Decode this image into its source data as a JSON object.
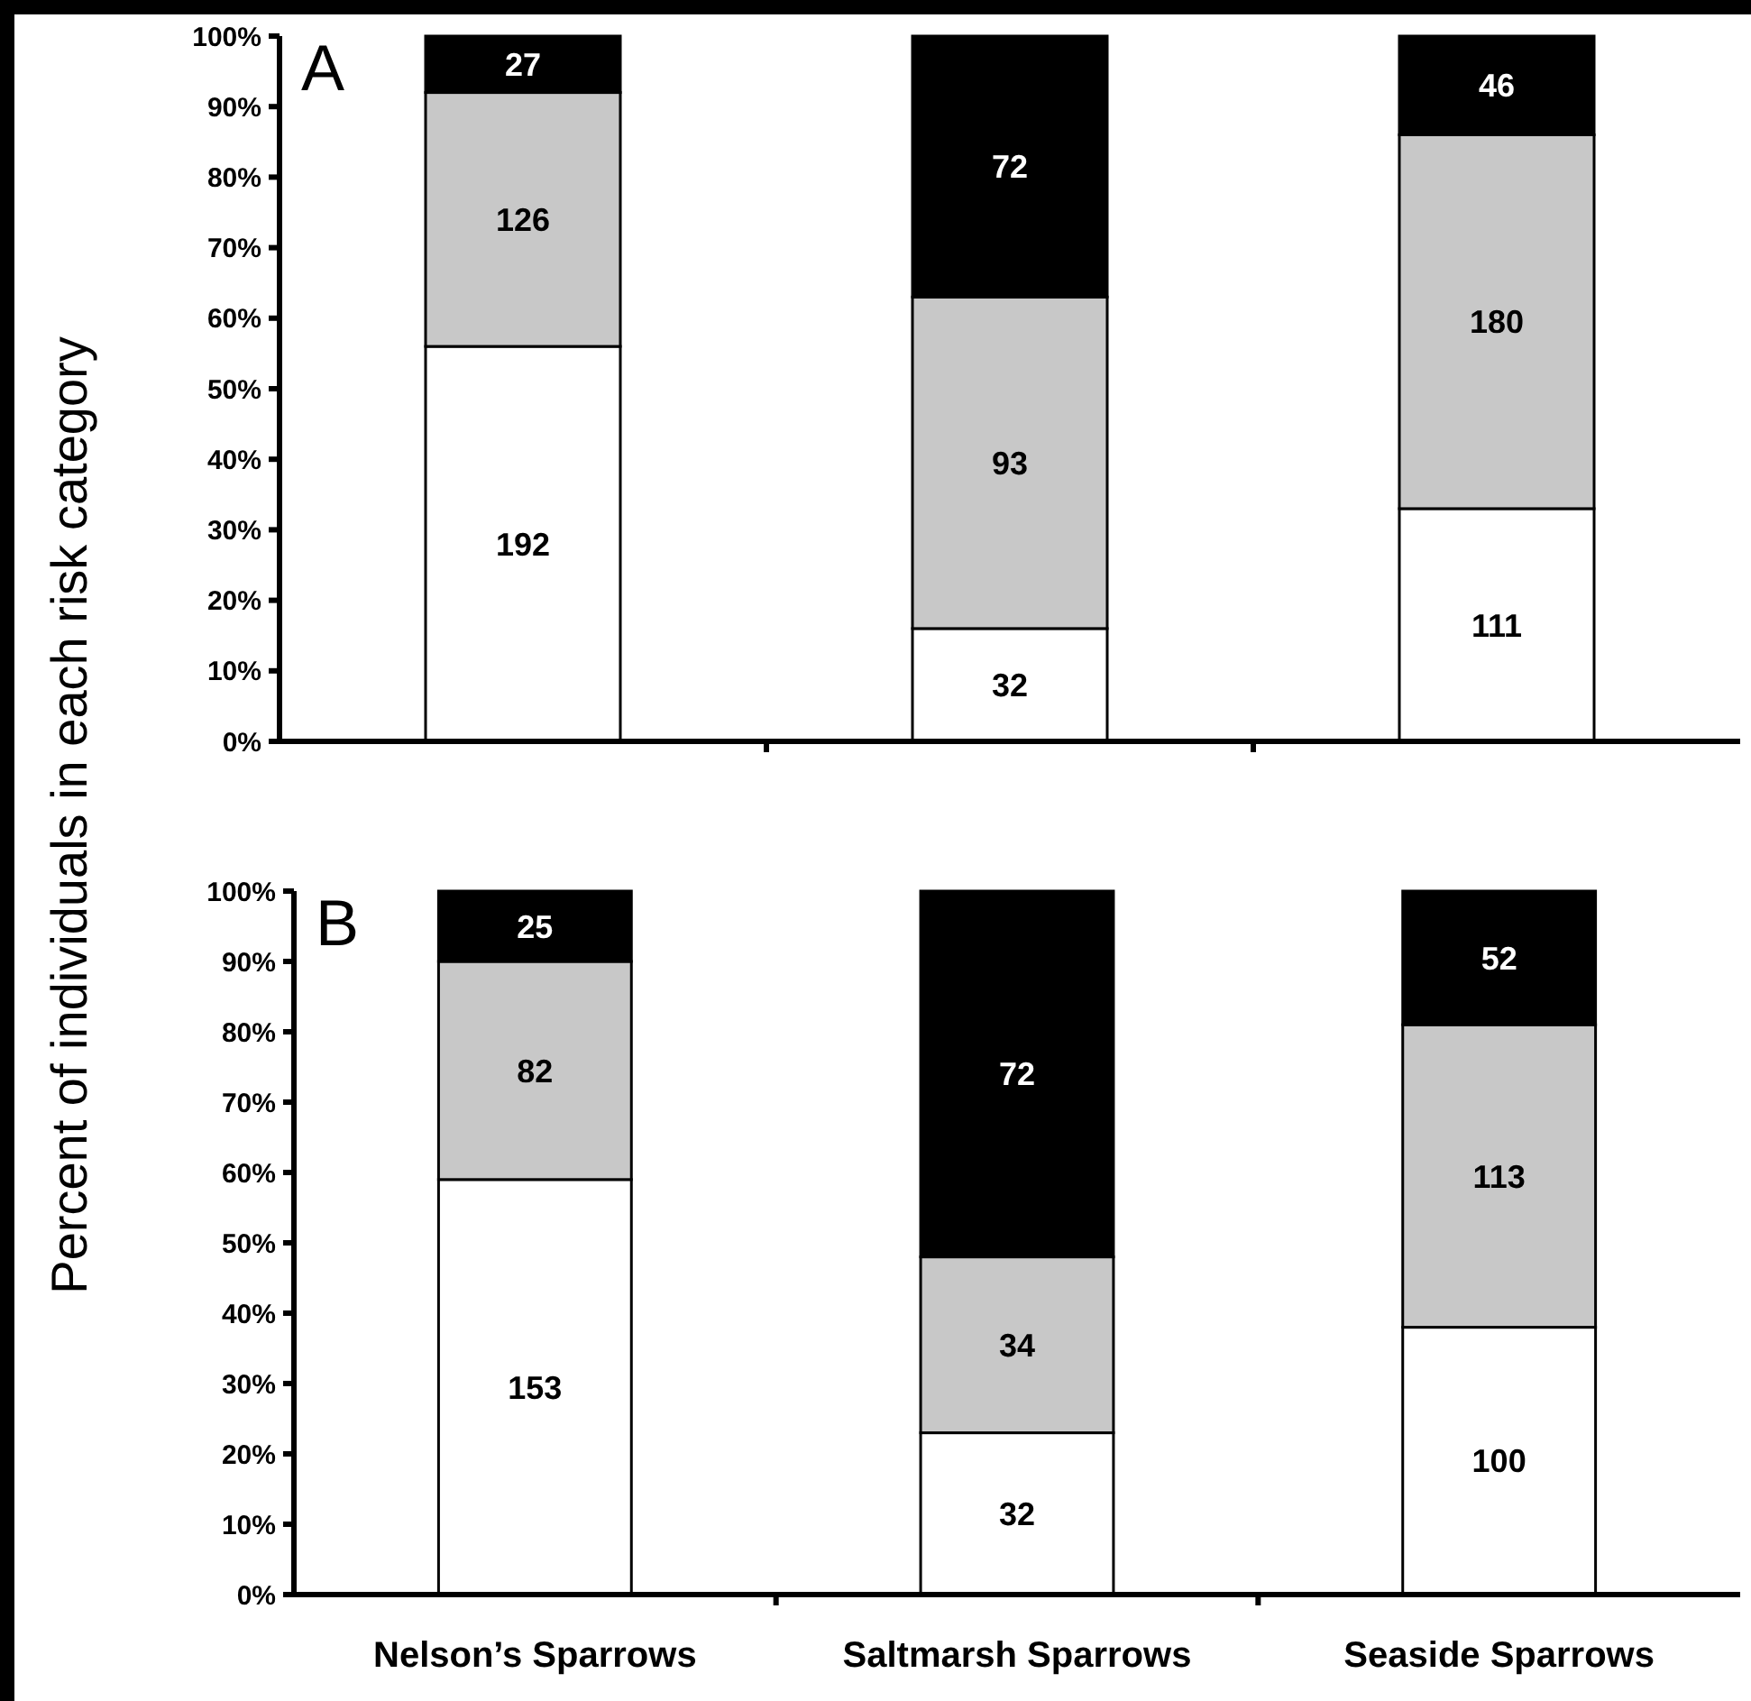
{
  "chart_data": [
    {
      "type": "bar",
      "title": "A",
      "ylabel": "Percent of individuals in each risk category",
      "stacked": true,
      "categories": [
        null,
        null,
        null
      ],
      "ylim": [
        0,
        100
      ],
      "yticks": [
        {
          "value": 0,
          "label": "0%"
        },
        {
          "value": 10,
          "label": "10%"
        },
        {
          "value": 20,
          "label": "20%"
        },
        {
          "value": 30,
          "label": "30%"
        },
        {
          "value": 40,
          "label": "40%"
        },
        {
          "value": 50,
          "label": "50%"
        },
        {
          "value": 60,
          "label": "60%"
        },
        {
          "value": 70,
          "label": "70%"
        },
        {
          "value": 80,
          "label": "80%"
        },
        {
          "value": 90,
          "label": "90%"
        },
        {
          "value": 100,
          "label": "100%"
        }
      ],
      "grid": false,
      "series": [
        {
          "color": "#ffffff",
          "values": [
            56,
            16,
            33
          ]
        },
        {
          "color": "#c8c8c8",
          "values": [
            36,
            47,
            53
          ]
        },
        {
          "color": "#000000",
          "values": [
            8,
            37,
            14
          ]
        }
      ],
      "annotations": [
        "192",
        "32",
        "111",
        "126",
        "93",
        "180",
        "27",
        "72",
        "46"
      ]
    },
    {
      "type": "bar",
      "title": "B",
      "stacked": true,
      "categories": [
        "Nelson’s Sparrows",
        "Saltmarsh Sparrows",
        "Seaside Sparrows"
      ],
      "ylim": [
        0,
        100
      ],
      "yticks": [
        {
          "value": 0,
          "label": "0%"
        },
        {
          "value": 10,
          "label": "10%"
        },
        {
          "value": 20,
          "label": "20%"
        },
        {
          "value": 30,
          "label": "30%"
        },
        {
          "value": 40,
          "label": "40%"
        },
        {
          "value": 50,
          "label": "50%"
        },
        {
          "value": 60,
          "label": "60%"
        },
        {
          "value": 70,
          "label": "70%"
        },
        {
          "value": 80,
          "label": "80%"
        },
        {
          "value": 90,
          "label": "90%"
        },
        {
          "value": 100,
          "label": "100%"
        }
      ],
      "grid": false,
      "series": [
        {
          "color": "#ffffff",
          "values": [
            59,
            23,
            38
          ]
        },
        {
          "color": "#c8c8c8",
          "values": [
            31,
            25,
            43
          ]
        },
        {
          "color": "#000000",
          "values": [
            10,
            52,
            19
          ]
        }
      ],
      "annotations": [
        "153",
        "32",
        "100",
        "82",
        "34",
        "113",
        "25",
        "72",
        "52"
      ]
    }
  ]
}
